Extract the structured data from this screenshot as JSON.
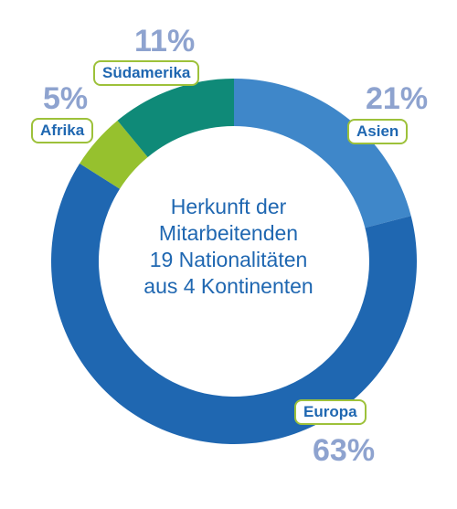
{
  "chart_data": {
    "type": "pie",
    "donut": true,
    "center_text": [
      "Herkunft der",
      "Mitarbeitenden",
      "19 Nationalitäten",
      "aus 4 Kontinenten"
    ],
    "slices": [
      {
        "label": "Asien",
        "value": 21,
        "value_label": "21%",
        "color": "#3f87c9"
      },
      {
        "label": "Europa",
        "value": 63,
        "value_label": "63%",
        "color": "#1f67b1"
      },
      {
        "label": "Afrika",
        "value": 5,
        "value_label": "5%",
        "color": "#96c12e"
      },
      {
        "label": "Südamerika",
        "value": 11,
        "value_label": "11%",
        "color": "#0f8a78"
      }
    ],
    "label_border_color": "#9dc13a",
    "percent_color": "#8ea3cf"
  }
}
